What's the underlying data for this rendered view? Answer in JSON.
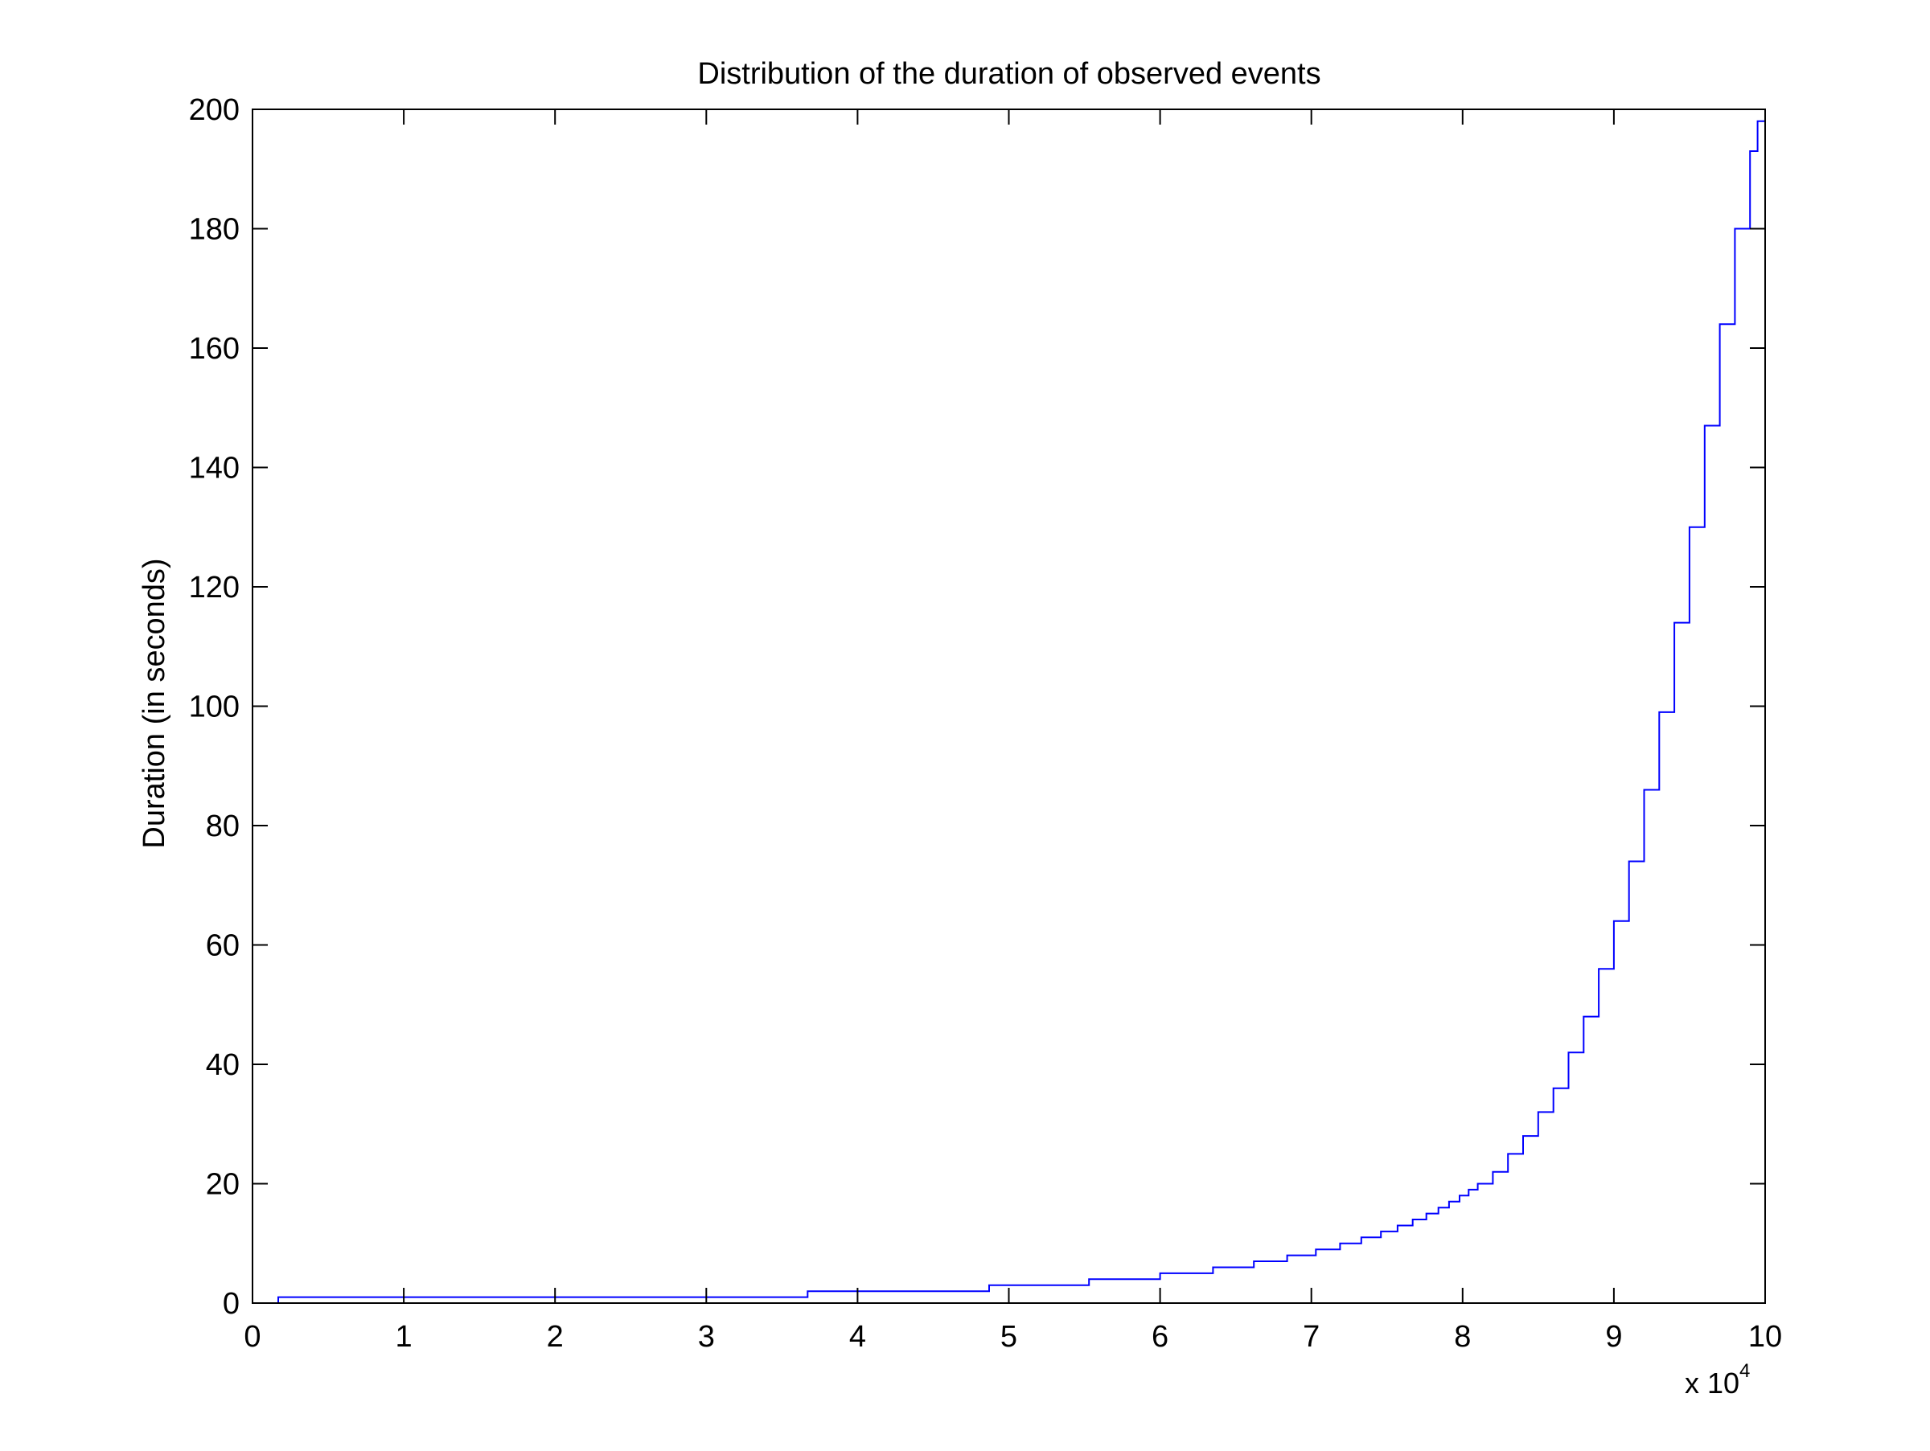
{
  "chart_data": {
    "type": "line",
    "title": "Distribution of the duration of observed events",
    "xlabel": "",
    "ylabel": "Duration (in seconds)",
    "x_exponent_base": "x 10",
    "x_exponent_power": "4",
    "xlim": [
      0,
      10
    ],
    "ylim": [
      0,
      200
    ],
    "xticks": [
      0,
      1,
      2,
      3,
      4,
      5,
      6,
      7,
      8,
      9,
      10
    ],
    "xtick_labels": [
      "0",
      "1",
      "2",
      "3",
      "4",
      "5",
      "6",
      "7",
      "8",
      "9",
      "10"
    ],
    "yticks": [
      0,
      20,
      40,
      60,
      80,
      100,
      120,
      140,
      160,
      180,
      200
    ],
    "ytick_labels": [
      "0",
      "20",
      "40",
      "60",
      "80",
      "100",
      "120",
      "140",
      "160",
      "180",
      "200"
    ],
    "grid": false,
    "box": true,
    "series": [
      {
        "style": "stairs",
        "color": "#0000ff",
        "x": [
          0.17,
          3.67,
          4.87,
          5.53,
          6.0,
          6.35,
          6.62,
          6.84,
          7.03,
          7.19,
          7.33,
          7.46,
          7.57,
          7.67,
          7.76,
          7.84,
          7.91,
          7.98,
          8.04,
          8.1,
          8.2,
          8.3,
          8.4,
          8.5,
          8.6,
          8.7,
          8.8,
          8.9,
          9.0,
          9.1,
          9.2,
          9.3,
          9.4,
          9.5,
          9.6,
          9.7,
          9.8,
          9.9,
          9.95,
          10.0
        ],
        "y": [
          1,
          2,
          3,
          4,
          5,
          6,
          7,
          8,
          9,
          10,
          11,
          12,
          13,
          14,
          15,
          16,
          17,
          18,
          19,
          20,
          22,
          25,
          28,
          32,
          36,
          42,
          48,
          56,
          64,
          74,
          86,
          99,
          114,
          130,
          147,
          164,
          180,
          193,
          198,
          199
        ]
      }
    ]
  },
  "colors": {
    "background": "#ffffff",
    "axes": "#000000",
    "line": "#0000ff"
  }
}
